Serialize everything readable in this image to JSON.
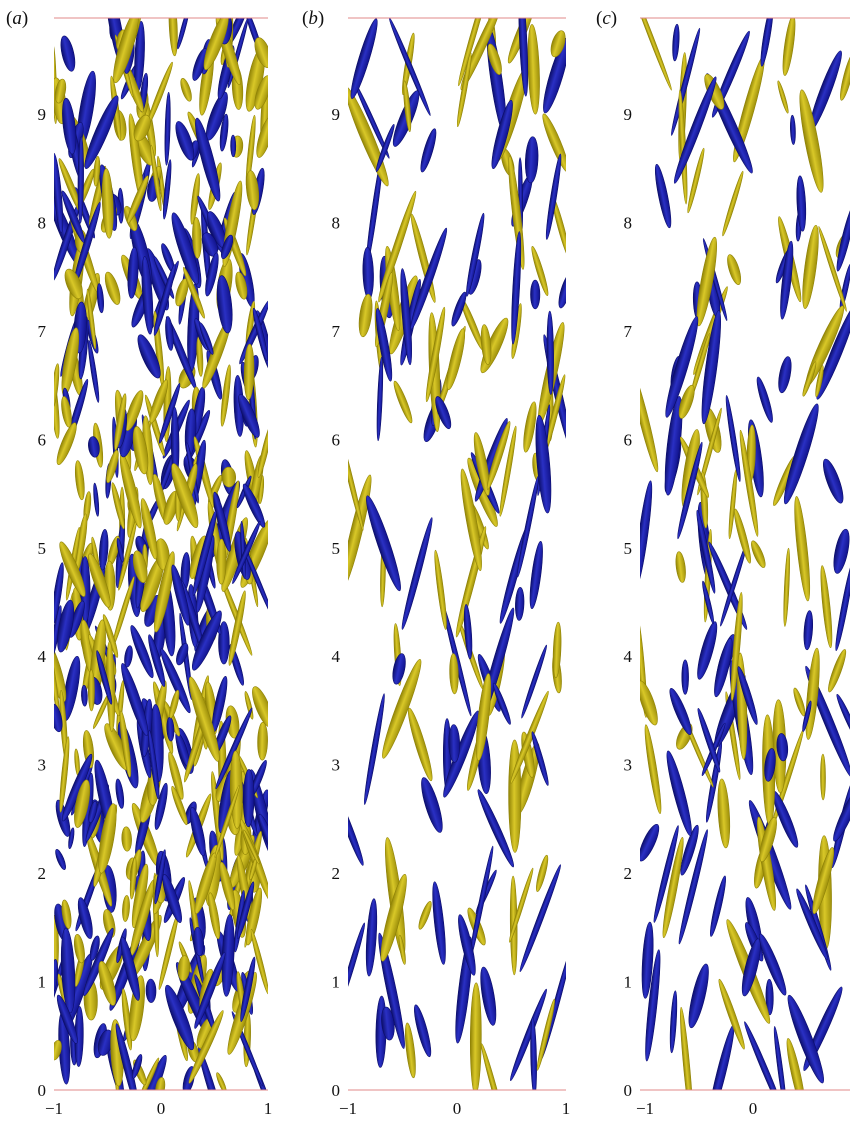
{
  "figure": {
    "panels": [
      {
        "label_open": "(",
        "label_letter": "a",
        "label_close": ")",
        "y_tick_labels": [
          "0",
          "1",
          "2",
          "3",
          "4",
          "5",
          "6",
          "7",
          "8",
          "9"
        ],
        "x_tick_labels": [
          "−1",
          "0",
          "1"
        ],
        "density": "dense"
      },
      {
        "label_open": "(",
        "label_letter": "b",
        "label_close": ")",
        "y_tick_labels": [
          "0",
          "1",
          "2",
          "3",
          "4",
          "5",
          "6",
          "7",
          "8",
          "9"
        ],
        "x_tick_labels": [
          "−1",
          "0",
          "1"
        ],
        "density": "sparse"
      },
      {
        "label_open": "(",
        "label_letter": "c",
        "label_close": ")",
        "y_tick_labels": [
          "0",
          "1",
          "2",
          "3",
          "4",
          "5",
          "6",
          "7",
          "8",
          "9"
        ],
        "x_tick_labels": [
          "−1",
          "0"
        ],
        "density": "sparse"
      }
    ],
    "colors": {
      "positive_structure": "#c8b714",
      "positive_structure_dark": "#8f8206",
      "negative_structure": "#1b1fa8",
      "negative_structure_dark": "#0c0e6a",
      "frame_line": "#e08a8a"
    }
  }
}
